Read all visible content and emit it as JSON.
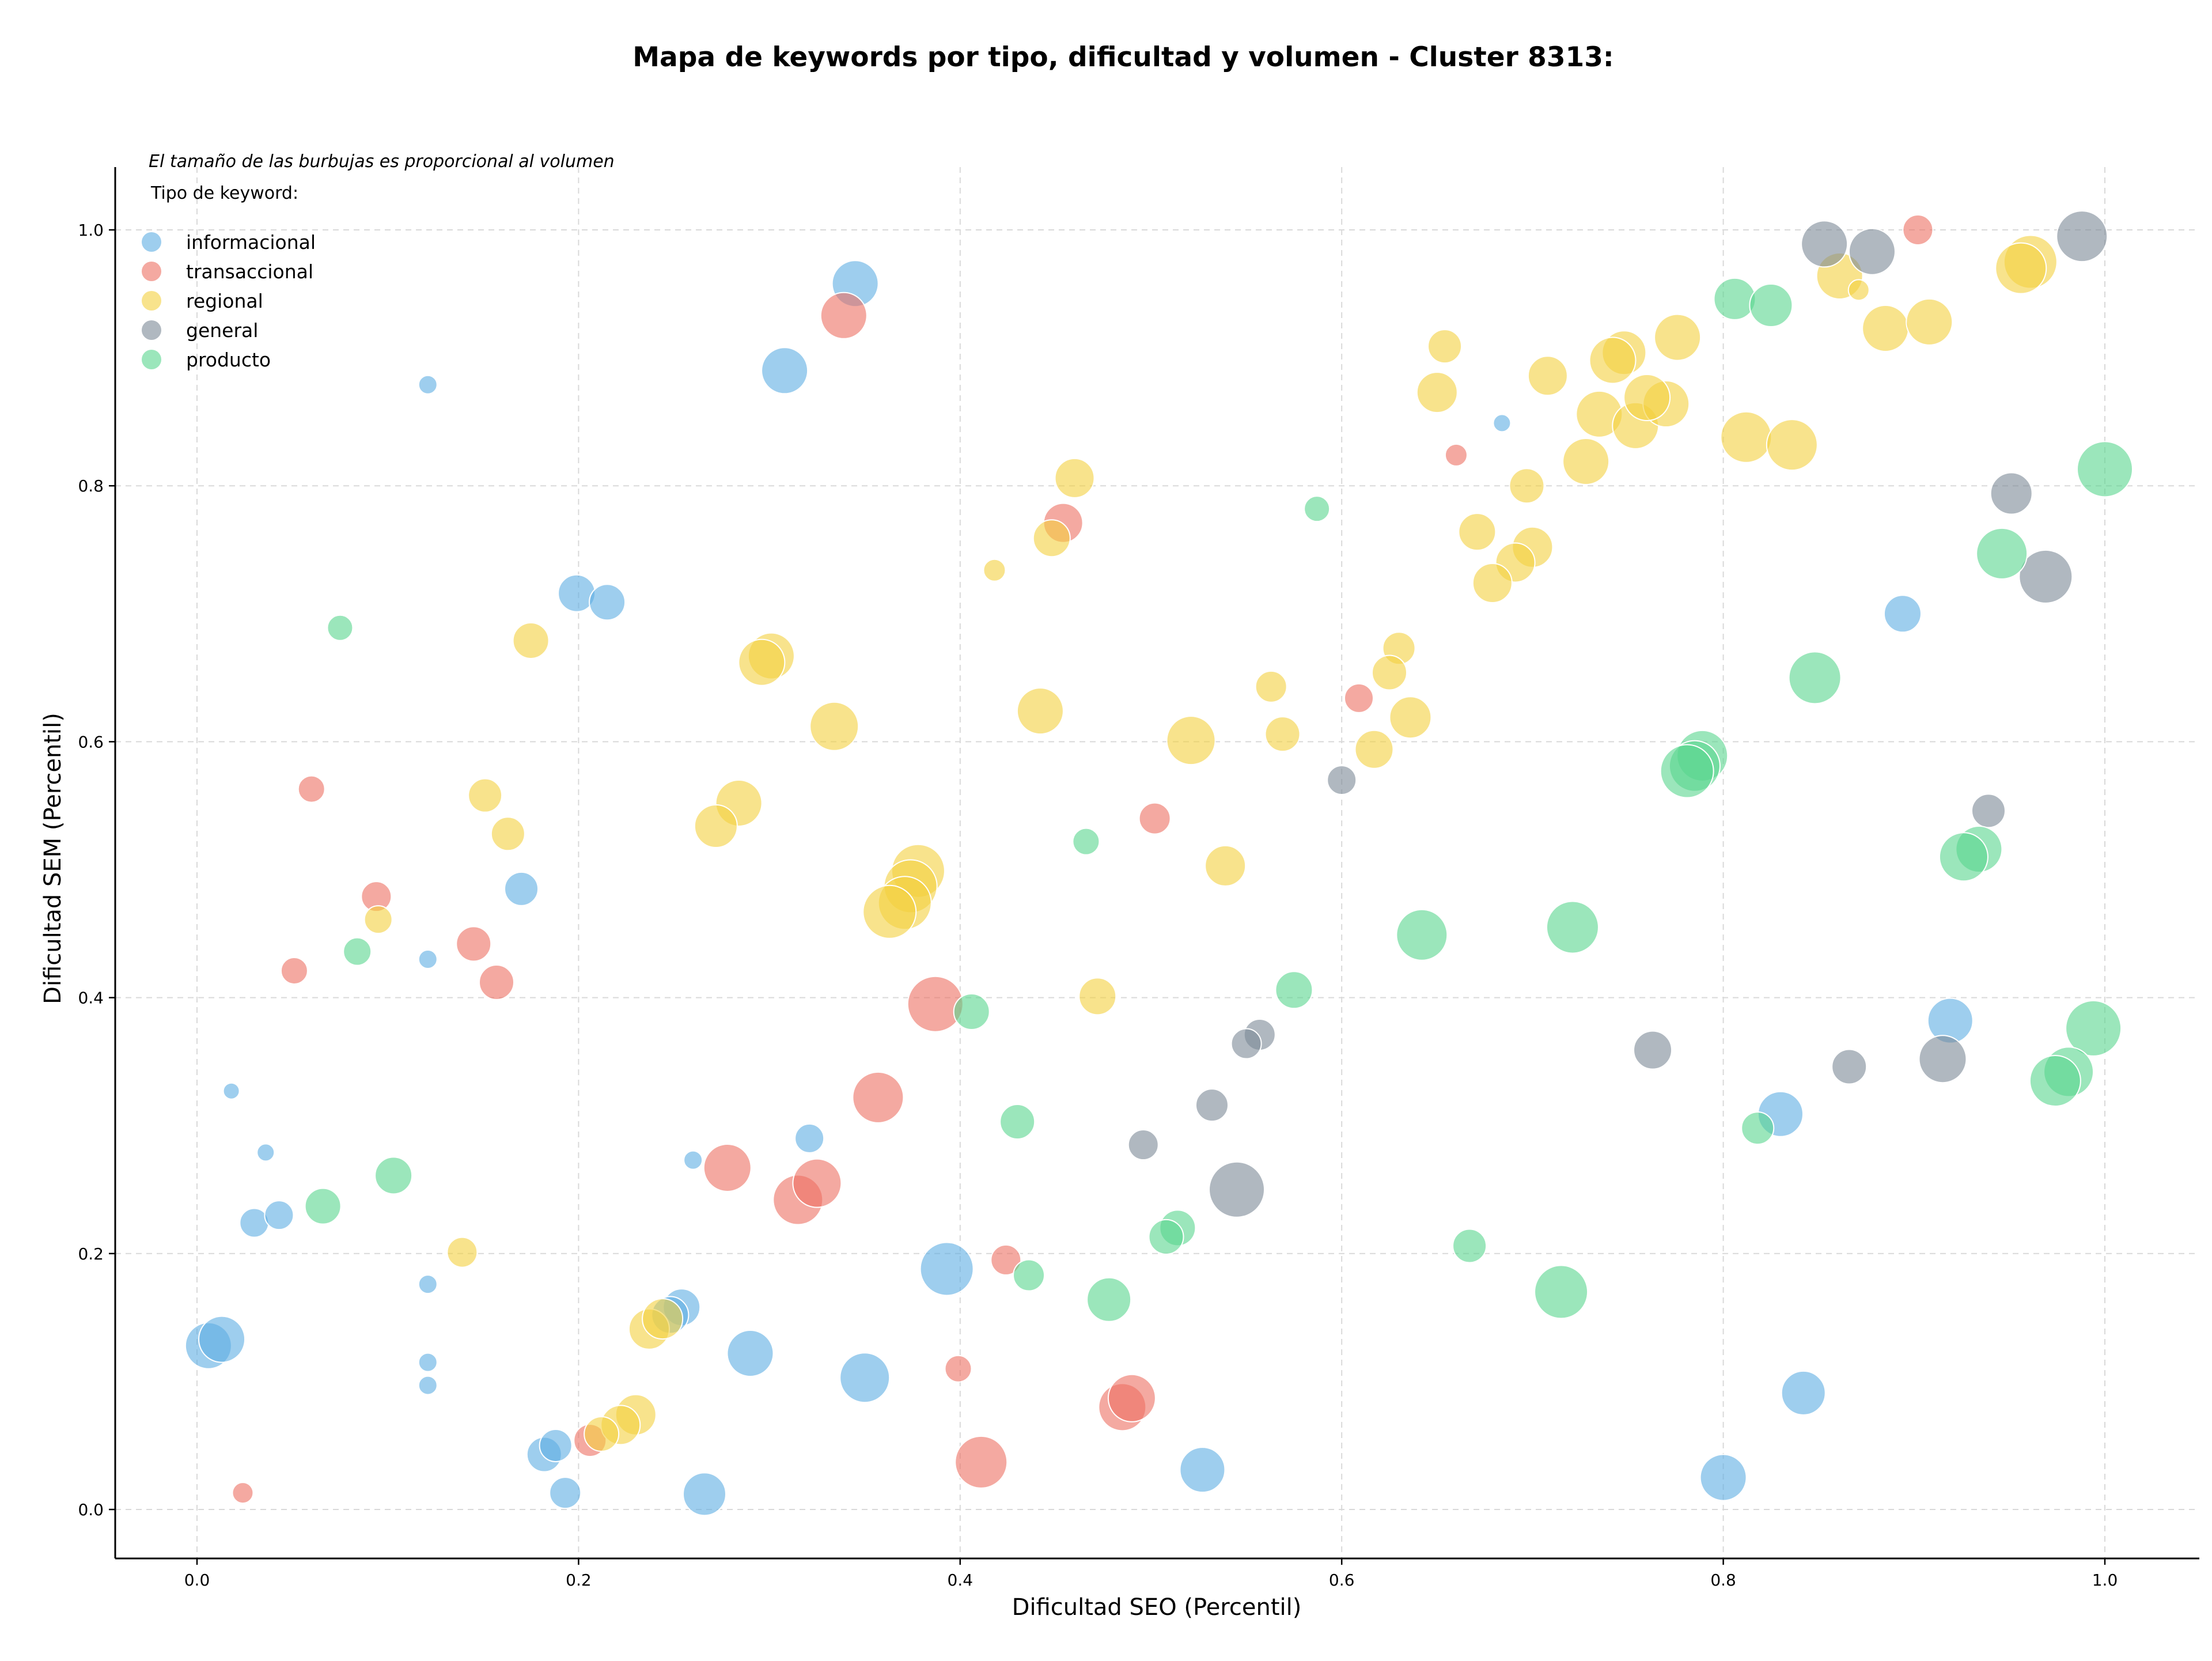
{
  "chart_data": {
    "type": "scatter",
    "title": "Mapa de keywords por tipo, dificultad y volumen - Cluster 8313:",
    "xlabel": "Dificultad SEO (Percentil)",
    "ylabel": "Dificultad SEM (Percentil)",
    "xlim": [
      -0.04,
      1.05
    ],
    "ylim": [
      -0.035,
      1.05
    ],
    "xticks": [
      "0.0",
      "0.2",
      "0.4",
      "0.6",
      "0.8",
      "1.0"
    ],
    "yticks": [
      "0.0",
      "0.2",
      "0.4",
      "0.6",
      "0.8",
      "1.0"
    ],
    "grid": true,
    "note": "El tamaño de las burbujas es proporcional al volumen",
    "legend_title": "Tipo de keyword:",
    "legend_position": "top-left",
    "series": [
      {
        "name": "informacional",
        "color": "#5DADE2",
        "points": [
          [
            0.345,
            0.958,
            40
          ],
          [
            0.308,
            0.89,
            40
          ],
          [
            0.121,
            0.879,
            16
          ],
          [
            0.684,
            0.849,
            15
          ],
          [
            0.199,
            0.716,
            32
          ],
          [
            0.215,
            0.709,
            31
          ],
          [
            0.894,
            0.7,
            32
          ],
          [
            0.17,
            0.485,
            29
          ],
          [
            0.121,
            0.43,
            16
          ],
          [
            0.018,
            0.327,
            14
          ],
          [
            0.036,
            0.279,
            15
          ],
          [
            0.321,
            0.29,
            25
          ],
          [
            0.26,
            0.273,
            16
          ],
          [
            0.03,
            0.224,
            25
          ],
          [
            0.043,
            0.23,
            25
          ],
          [
            0.121,
            0.176,
            16
          ],
          [
            0.006,
            0.128,
            40
          ],
          [
            0.013,
            0.133,
            40
          ],
          [
            0.254,
            0.158,
            32
          ],
          [
            0.248,
            0.152,
            32
          ],
          [
            0.393,
            0.188,
            46
          ],
          [
            0.919,
            0.382,
            39
          ],
          [
            0.83,
            0.309,
            39
          ],
          [
            0.29,
            0.122,
            40
          ],
          [
            0.35,
            0.103,
            43
          ],
          [
            0.121,
            0.115,
            16
          ],
          [
            0.121,
            0.097,
            16
          ],
          [
            0.182,
            0.043,
            30
          ],
          [
            0.188,
            0.05,
            28
          ],
          [
            0.193,
            0.013,
            27
          ],
          [
            0.266,
            0.012,
            37
          ],
          [
            0.527,
            0.031,
            39
          ],
          [
            0.842,
            0.091,
            38
          ],
          [
            0.8,
            0.025,
            40
          ]
        ]
      },
      {
        "name": "transaccional",
        "color": "#EC7063",
        "points": [
          [
            0.902,
            1.0,
            26
          ],
          [
            0.339,
            0.933,
            40
          ],
          [
            0.66,
            0.824,
            19
          ],
          [
            0.454,
            0.771,
            34
          ],
          [
            0.609,
            0.634,
            25
          ],
          [
            0.06,
            0.563,
            23
          ],
          [
            0.502,
            0.54,
            27
          ],
          [
            0.094,
            0.479,
            26
          ],
          [
            0.145,
            0.442,
            30
          ],
          [
            0.157,
            0.412,
            30
          ],
          [
            0.051,
            0.421,
            23
          ],
          [
            0.387,
            0.395,
            48
          ],
          [
            0.357,
            0.322,
            44
          ],
          [
            0.278,
            0.267,
            41
          ],
          [
            0.315,
            0.242,
            43
          ],
          [
            0.325,
            0.255,
            42
          ],
          [
            0.424,
            0.195,
            26
          ],
          [
            0.399,
            0.11,
            23
          ],
          [
            0.024,
            0.013,
            18
          ],
          [
            0.206,
            0.054,
            28
          ],
          [
            0.411,
            0.037,
            45
          ],
          [
            0.485,
            0.08,
            41
          ],
          [
            0.49,
            0.087,
            41
          ]
        ]
      },
      {
        "name": "regional",
        "color": "#F4D03F",
        "points": [
          [
            0.961,
            0.975,
            46
          ],
          [
            0.956,
            0.97,
            44
          ],
          [
            0.861,
            0.964,
            40
          ],
          [
            0.871,
            0.953,
            18
          ],
          [
            0.885,
            0.923,
            40
          ],
          [
            0.908,
            0.928,
            40
          ],
          [
            0.776,
            0.916,
            40
          ],
          [
            0.748,
            0.904,
            38
          ],
          [
            0.742,
            0.898,
            40
          ],
          [
            0.654,
            0.909,
            29
          ],
          [
            0.708,
            0.886,
            34
          ],
          [
            0.65,
            0.873,
            35
          ],
          [
            0.735,
            0.856,
            40
          ],
          [
            0.754,
            0.847,
            40
          ],
          [
            0.77,
            0.864,
            40
          ],
          [
            0.76,
            0.869,
            40
          ],
          [
            0.812,
            0.838,
            44
          ],
          [
            0.836,
            0.832,
            44
          ],
          [
            0.728,
            0.819,
            40
          ],
          [
            0.697,
            0.8,
            30
          ],
          [
            0.46,
            0.806,
            34
          ],
          [
            0.418,
            0.734,
            19
          ],
          [
            0.448,
            0.759,
            32
          ],
          [
            0.671,
            0.764,
            32
          ],
          [
            0.7,
            0.752,
            35
          ],
          [
            0.691,
            0.74,
            34
          ],
          [
            0.679,
            0.724,
            34
          ],
          [
            0.175,
            0.679,
            31
          ],
          [
            0.301,
            0.667,
            40
          ],
          [
            0.296,
            0.662,
            40
          ],
          [
            0.63,
            0.673,
            28
          ],
          [
            0.625,
            0.654,
            30
          ],
          [
            0.563,
            0.643,
            27
          ],
          [
            0.442,
            0.624,
            40
          ],
          [
            0.334,
            0.612,
            42
          ],
          [
            0.521,
            0.601,
            42
          ],
          [
            0.569,
            0.606,
            30
          ],
          [
            0.636,
            0.619,
            36
          ],
          [
            0.617,
            0.594,
            33
          ],
          [
            0.151,
            0.558,
            29
          ],
          [
            0.284,
            0.552,
            40
          ],
          [
            0.272,
            0.534,
            37
          ],
          [
            0.163,
            0.528,
            29
          ],
          [
            0.378,
            0.499,
            46
          ],
          [
            0.374,
            0.487,
            46
          ],
          [
            0.371,
            0.474,
            46
          ],
          [
            0.363,
            0.467,
            46
          ],
          [
            0.539,
            0.503,
            35
          ],
          [
            0.095,
            0.461,
            24
          ],
          [
            0.472,
            0.401,
            32
          ],
          [
            0.139,
            0.201,
            26
          ],
          [
            0.237,
            0.141,
            35
          ],
          [
            0.244,
            0.149,
            35
          ],
          [
            0.23,
            0.074,
            35
          ],
          [
            0.222,
            0.066,
            34
          ],
          [
            0.212,
            0.059,
            30
          ]
        ]
      },
      {
        "name": "general",
        "color": "#7B8896",
        "points": [
          [
            0.853,
            0.989,
            40
          ],
          [
            0.878,
            0.983,
            40
          ],
          [
            0.988,
            0.995,
            44
          ],
          [
            0.951,
            0.794,
            36
          ],
          [
            0.969,
            0.729,
            46
          ],
          [
            0.6,
            0.57,
            25
          ],
          [
            0.939,
            0.546,
            29
          ],
          [
            0.557,
            0.371,
            27
          ],
          [
            0.55,
            0.364,
            26
          ],
          [
            0.763,
            0.359,
            33
          ],
          [
            0.915,
            0.352,
            41
          ],
          [
            0.866,
            0.346,
            30
          ],
          [
            0.532,
            0.316,
            28
          ],
          [
            0.496,
            0.285,
            26
          ],
          [
            0.545,
            0.25,
            48
          ]
        ]
      },
      {
        "name": "producto",
        "color": "#58D68D",
        "points": [
          [
            0.806,
            0.946,
            36
          ],
          [
            0.825,
            0.941,
            37
          ],
          [
            0.587,
            0.782,
            22
          ],
          [
            1.0,
            0.813,
            48
          ],
          [
            0.946,
            0.747,
            44
          ],
          [
            0.075,
            0.689,
            22
          ],
          [
            0.848,
            0.65,
            45
          ],
          [
            0.789,
            0.589,
            44
          ],
          [
            0.785,
            0.581,
            44
          ],
          [
            0.781,
            0.577,
            46
          ],
          [
            0.466,
            0.522,
            23
          ],
          [
            0.934,
            0.516,
            40
          ],
          [
            0.926,
            0.51,
            42
          ],
          [
            0.084,
            0.436,
            24
          ],
          [
            0.642,
            0.449,
            44
          ],
          [
            0.721,
            0.455,
            45
          ],
          [
            0.575,
            0.406,
            32
          ],
          [
            0.406,
            0.389,
            31
          ],
          [
            0.994,
            0.376,
            48
          ],
          [
            0.981,
            0.342,
            43
          ],
          [
            0.974,
            0.335,
            44
          ],
          [
            0.43,
            0.303,
            30
          ],
          [
            0.818,
            0.298,
            28
          ],
          [
            0.103,
            0.261,
            32
          ],
          [
            0.066,
            0.237,
            31
          ],
          [
            0.514,
            0.22,
            31
          ],
          [
            0.508,
            0.213,
            30
          ],
          [
            0.436,
            0.183,
            27
          ],
          [
            0.667,
            0.206,
            29
          ],
          [
            0.478,
            0.164,
            38
          ],
          [
            0.715,
            0.17,
            46
          ]
        ]
      }
    ]
  }
}
